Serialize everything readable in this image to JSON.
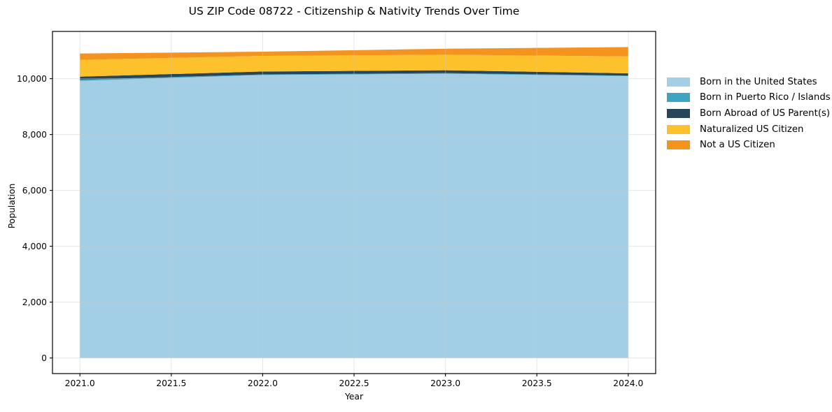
{
  "chart_data": {
    "type": "area",
    "stacked": true,
    "title": "US ZIP Code 08722 - Citizenship & Nativity Trends Over Time",
    "xlabel": "Year",
    "ylabel": "Population",
    "x": [
      2021,
      2022,
      2023,
      2024
    ],
    "series": [
      {
        "name": "Born in the United States",
        "color": "#A3CFE6",
        "values": [
          9920,
          10130,
          10175,
          10090
        ]
      },
      {
        "name": "Born in Puerto Rico / Islands",
        "color": "#3DA4C3",
        "values": [
          45,
          20,
          25,
          15
        ]
      },
      {
        "name": "Born Abroad of US Parent(s)",
        "color": "#28465A",
        "values": [
          105,
          105,
          100,
          85
        ]
      },
      {
        "name": "Naturalized US Citizen",
        "color": "#FCC12B",
        "values": [
          600,
          560,
          555,
          605
        ]
      },
      {
        "name": "Not a US Citizen",
        "color": "#F5931F",
        "values": [
          230,
          150,
          215,
          335
        ]
      }
    ],
    "totals": [
      10900,
      10965,
      11070,
      11130
    ],
    "x_ticks": {
      "values": [
        2021.0,
        2021.5,
        2022.0,
        2022.5,
        2023.0,
        2023.5,
        2024.0
      ],
      "labels": [
        "2021.0",
        "2021.5",
        "2022.0",
        "2022.5",
        "2023.0",
        "2023.5",
        "2024.0"
      ]
    },
    "y_ticks": {
      "values": [
        0,
        2000,
        4000,
        6000,
        8000,
        10000
      ],
      "labels": [
        "0",
        "2,000",
        "4,000",
        "6,000",
        "8,000",
        "10,000"
      ]
    },
    "xlim": [
      2020.85,
      2024.15
    ],
    "ylim": [
      -560,
      11690
    ],
    "grid": true,
    "grid_color": "#c8c8c8",
    "legend_position": "right",
    "spine_color": "#000000"
  }
}
